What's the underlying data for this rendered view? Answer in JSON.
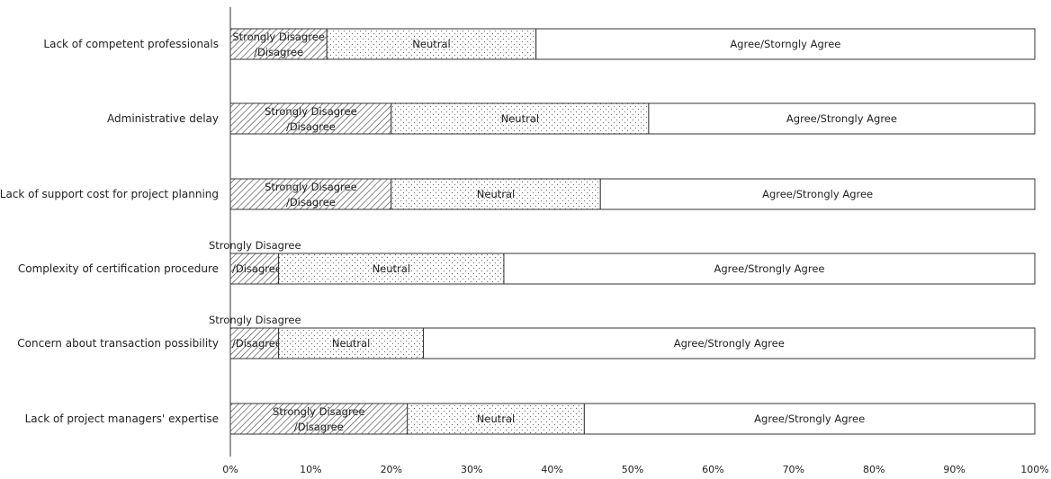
{
  "chart_data": {
    "type": "bar",
    "orientation": "horizontal",
    "stacked": true,
    "categories": [
      "Lack of competent professionals",
      "Administrative delay",
      "Lack of support cost for project planning",
      "Complexity of certification procedure",
      "Concern about transaction possibility",
      "Lack of project managers' expertise"
    ],
    "series": [
      {
        "name": "Strongly Disagree/Disagree",
        "values": [
          12,
          20,
          20,
          6,
          6,
          22
        ],
        "pattern": "hatch",
        "color": "#555555"
      },
      {
        "name": "Neutral",
        "values": [
          26,
          32,
          26,
          28,
          18,
          22
        ],
        "pattern": "dots",
        "color": "#888888"
      },
      {
        "name": "Agree/Strongly Agree",
        "values": [
          62,
          48,
          54,
          66,
          76,
          56
        ],
        "pattern": "none",
        "color": "#ffffff"
      }
    ],
    "segment_labels": [
      [
        [
          "Strongly Disagree",
          "/Disagree"
        ],
        [
          "Neutral"
        ],
        [
          "Agree/Storngly Agree"
        ]
      ],
      [
        [
          "Strongly Disagree",
          "/Disagree"
        ],
        [
          "Neutral"
        ],
        [
          "Agree/Strongly Agree"
        ]
      ],
      [
        [
          "Strongly Disagree",
          "/Disagree"
        ],
        [
          "Neutral"
        ],
        [
          "Agree/Strongly Agree"
        ]
      ],
      [
        [
          "Strongly Disagree",
          "/Disagree"
        ],
        [
          "Neutral"
        ],
        [
          "Agree/Strongly Agree"
        ]
      ],
      [
        [
          "Strongly Disagree",
          "/Disagree"
        ],
        [
          "Neutral"
        ],
        [
          "Agree/Strongly Agree"
        ]
      ],
      [
        [
          "Strongly Disagree",
          "/Disagree"
        ],
        [
          "Neutral"
        ],
        [
          "Agree/Strongly Agree"
        ]
      ]
    ],
    "xlim": [
      0,
      100
    ],
    "xticks": [
      "0%",
      "10%",
      "20%",
      "30%",
      "40%",
      "50%",
      "60%",
      "70%",
      "80%",
      "90%",
      "100%"
    ],
    "grid": false,
    "legend": "none"
  }
}
